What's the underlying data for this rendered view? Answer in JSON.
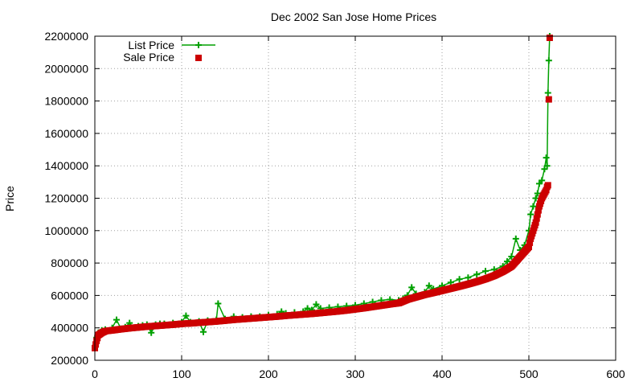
{
  "chart_data": {
    "type": "line",
    "title": "Dec 2002 San Jose Home Prices",
    "xlabel": "",
    "ylabel": "Price",
    "xlim": [
      0,
      600
    ],
    "ylim": [
      200000,
      2200000
    ],
    "xticks": [
      0,
      100,
      200,
      300,
      400,
      500,
      600
    ],
    "yticks": [
      200000,
      400000,
      600000,
      800000,
      1000000,
      1200000,
      1400000,
      1600000,
      1800000,
      2000000,
      2200000
    ],
    "grid": true,
    "legend_position": "top-left",
    "colors": {
      "list": "#00a000",
      "sale": "#cc0000"
    },
    "series": [
      {
        "name": "List Price",
        "style": "linespoints",
        "marker": "plus",
        "x": [
          0,
          2,
          4,
          8,
          12,
          20,
          25,
          30,
          35,
          40,
          45,
          50,
          55,
          60,
          65,
          70,
          75,
          80,
          90,
          100,
          105,
          110,
          120,
          125,
          130,
          140,
          142,
          150,
          160,
          170,
          180,
          190,
          200,
          210,
          215,
          220,
          230,
          240,
          245,
          250,
          255,
          260,
          270,
          280,
          290,
          300,
          310,
          320,
          330,
          340,
          350,
          355,
          360,
          365,
          370,
          380,
          385,
          390,
          400,
          410,
          420,
          430,
          440,
          450,
          460,
          470,
          475,
          480,
          485,
          490,
          495,
          500,
          502,
          505,
          508,
          510,
          512,
          515,
          518,
          520,
          521,
          522,
          523,
          524
        ],
        "y": [
          290000,
          340000,
          370000,
          385000,
          390000,
          400000,
          450000,
          395000,
          405000,
          430000,
          400000,
          410000,
          415000,
          420000,
          370000,
          420000,
          425000,
          425000,
          430000,
          435000,
          475000,
          435000,
          440000,
          375000,
          445000,
          450000,
          550000,
          455000,
          470000,
          465000,
          470000,
          470000,
          480000,
          485000,
          500000,
          490000,
          495000,
          500000,
          520000,
          510000,
          545000,
          520000,
          525000,
          530000,
          535000,
          540000,
          550000,
          560000,
          570000,
          575000,
          570000,
          580000,
          600000,
          650000,
          610000,
          620000,
          660000,
          640000,
          660000,
          680000,
          700000,
          710000,
          730000,
          750000,
          760000,
          780000,
          810000,
          840000,
          950000,
          880000,
          910000,
          1000000,
          1100000,
          1150000,
          1200000,
          1230000,
          1290000,
          1310000,
          1380000,
          1450000,
          1400000,
          1850000,
          2050000,
          2200000
        ]
      },
      {
        "name": "Sale Price",
        "style": "points",
        "marker": "square",
        "x": [
          0,
          2,
          4,
          8,
          12,
          20,
          30,
          40,
          50,
          60,
          70,
          80,
          90,
          100,
          110,
          120,
          130,
          140,
          150,
          160,
          170,
          180,
          190,
          200,
          210,
          220,
          230,
          240,
          250,
          260,
          270,
          280,
          290,
          300,
          310,
          320,
          330,
          340,
          350,
          360,
          370,
          380,
          390,
          400,
          410,
          420,
          430,
          440,
          450,
          460,
          470,
          480,
          490,
          495,
          500,
          502,
          505,
          508,
          510,
          512,
          515,
          518,
          520,
          521,
          522,
          523,
          524
        ],
        "y": [
          275000,
          320000,
          355000,
          370000,
          380000,
          385000,
          392000,
          398000,
          403000,
          408000,
          412000,
          416000,
          420000,
          425000,
          428000,
          432000,
          436000,
          440000,
          445000,
          450000,
          454000,
          458000,
          462000,
          466000,
          470000,
          475000,
          479000,
          483000,
          487000,
          492000,
          497000,
          502000,
          508000,
          515000,
          522000,
          530000,
          538000,
          546000,
          553000,
          575000,
          590000,
          605000,
          617000,
          630000,
          643000,
          656000,
          670000,
          685000,
          702000,
          722000,
          748000,
          780000,
          840000,
          870000,
          900000,
          950000,
          1000000,
          1050000,
          1100000,
          1150000,
          1200000,
          1230000,
          1250000,
          1270000,
          1280000,
          1810000,
          2190000
        ]
      }
    ]
  }
}
